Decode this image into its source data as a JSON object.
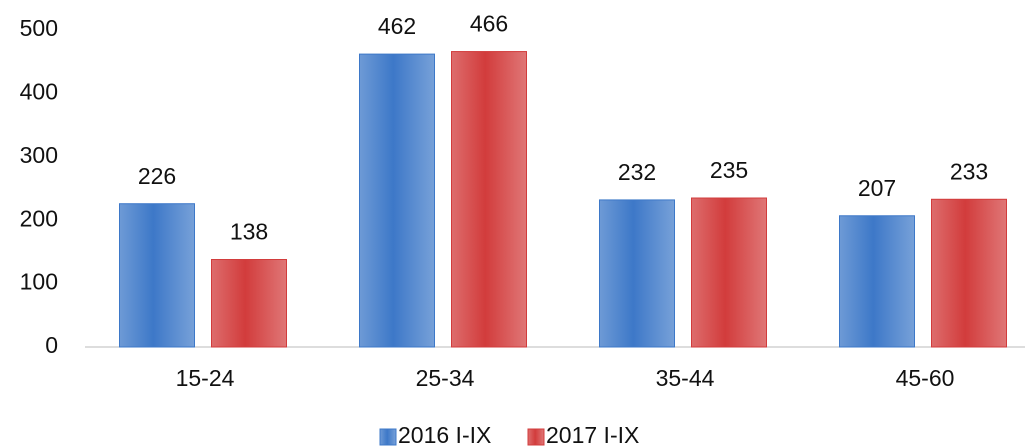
{
  "chart_data": {
    "type": "bar",
    "categories": [
      "15-24",
      "25-34",
      "35-44",
      "45-60"
    ],
    "series": [
      {
        "name": "2016 I-IX",
        "color": "#3d78c8",
        "values": [
          226,
          462,
          232,
          207
        ]
      },
      {
        "name": "2017 I-IX",
        "color": "#d23c3c",
        "values": [
          138,
          466,
          235,
          233
        ]
      }
    ],
    "ylim": [
      0,
      500
    ],
    "yticks": [
      0,
      100,
      200,
      300,
      400,
      500
    ],
    "grid": false,
    "legend": "bottom"
  }
}
